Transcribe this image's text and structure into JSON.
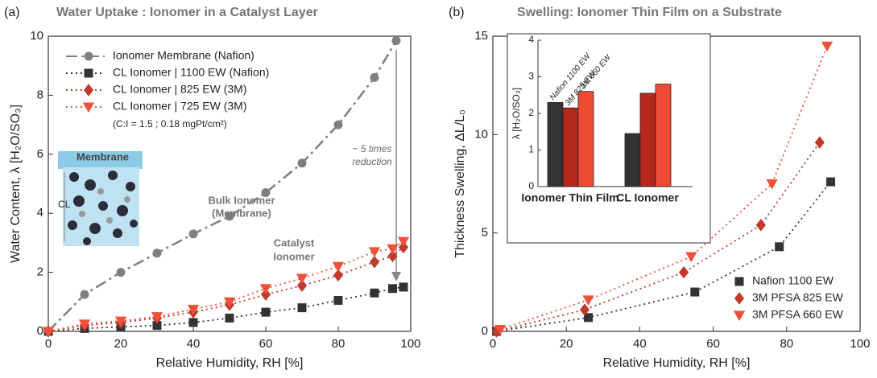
{
  "chart_data": [
    {
      "type": "line",
      "panel": "(a)",
      "title": "Water Uptake : Ionomer in a Catalyst Layer",
      "x_label": "Relative Humidity, RH [%]",
      "y_label": "Water Content,  λ [H₂O/SO₃]",
      "xlim": [
        0,
        100
      ],
      "xticks": [
        0,
        20,
        40,
        60,
        80,
        100
      ],
      "ylim": [
        0,
        10
      ],
      "yticks": [
        0,
        2,
        4,
        6,
        8,
        10
      ],
      "legend": "upper left",
      "series": [
        {
          "name": "Ionomer Membrane (Nafion)",
          "color": "#7f7f7f",
          "marker": "circle",
          "linestyle": "dashdot",
          "x": [
            0,
            10,
            20,
            30,
            40,
            50,
            60,
            70,
            80,
            90,
            96
          ],
          "values": [
            0,
            1.25,
            2.0,
            2.65,
            3.3,
            3.9,
            4.7,
            5.7,
            7.0,
            8.6,
            9.85
          ]
        },
        {
          "name": "CL Ionomer | 1100 EW (Nafion)",
          "color": "#333333",
          "marker": "square",
          "linestyle": "dotted",
          "x": [
            0,
            10,
            20,
            30,
            40,
            50,
            60,
            70,
            80,
            90,
            95,
            98
          ],
          "values": [
            0,
            0.1,
            0.15,
            0.2,
            0.3,
            0.45,
            0.65,
            0.8,
            1.05,
            1.3,
            1.45,
            1.5
          ]
        },
        {
          "name": "CL Ionomer | 825 EW (3M)",
          "color": "#c0392b",
          "marker": "diamond",
          "linestyle": "dotted",
          "x": [
            0,
            10,
            20,
            30,
            40,
            50,
            60,
            70,
            80,
            90,
            95,
            98
          ],
          "values": [
            0,
            0.2,
            0.3,
            0.45,
            0.65,
            0.9,
            1.25,
            1.55,
            1.9,
            2.35,
            2.55,
            2.85
          ]
        },
        {
          "name": "CL Ionomer | 725 EW (3M)",
          "color": "#f0503a",
          "marker": "triangle",
          "linestyle": "dotted",
          "x": [
            0,
            10,
            20,
            30,
            40,
            50,
            60,
            70,
            80,
            90,
            95,
            98
          ],
          "values": [
            0,
            0.25,
            0.35,
            0.5,
            0.75,
            1.0,
            1.45,
            1.8,
            2.2,
            2.7,
            2.8,
            3.05
          ]
        }
      ],
      "annotations": [
        "(C:I = 1.5 ; 0.18 mgPt/cm²)",
        "Bulk Ionomer",
        "(Membrane)",
        "Catalyst",
        "Ionomer",
        "~ 5 times",
        "reduction",
        "Membrane",
        "CL"
      ]
    },
    {
      "type": "line",
      "panel": "(b)",
      "title": "Swelling: Ionomer Thin Film on a Substrate",
      "x_label": "Relative Humidity, RH [%]",
      "y_label": "Thickness Swelling,  ΔL/L₀",
      "xlim": [
        0,
        100
      ],
      "xticks": [
        0,
        20,
        40,
        60,
        80,
        100
      ],
      "ylim": [
        0,
        15
      ],
      "yticks": [
        0,
        5,
        10,
        15
      ],
      "legend": "lower right",
      "series": [
        {
          "name": "Nafion 1100 EW",
          "color": "#333333",
          "marker": "square",
          "linestyle": "dotted",
          "x": [
            1,
            26,
            55,
            78,
            92
          ],
          "values": [
            0,
            0.7,
            2.0,
            4.3,
            7.6
          ]
        },
        {
          "name": "3M PFSA 825 EW",
          "color": "#c0392b",
          "marker": "diamond",
          "linestyle": "dotted",
          "x": [
            1,
            25,
            52,
            73,
            89
          ],
          "values": [
            0,
            1.1,
            3.0,
            5.4,
            9.6
          ]
        },
        {
          "name": "3M PFSA 660 EW",
          "color": "#f0503a",
          "marker": "triangle",
          "linestyle": "dotted",
          "x": [
            2,
            26,
            54,
            76,
            91
          ],
          "values": [
            0.1,
            1.6,
            3.8,
            7.5,
            14.5
          ]
        }
      ]
    },
    {
      "type": "bar",
      "y_label": "λ [H₂O/SO₃]",
      "ylim": [
        0,
        4
      ],
      "yticks": [
        0,
        1,
        2,
        3,
        4
      ],
      "categories": [
        "Ionomer Thin Film",
        "CL Ionomer"
      ],
      "series": [
        {
          "name": "Nafion 1100 EW",
          "color": "#333333",
          "values": [
            2.3,
            1.45
          ]
        },
        {
          "name": "3M 825 EW",
          "color": "#b5281c",
          "values": [
            2.15,
            2.55
          ]
        },
        {
          "name": "3M 660 EW",
          "color": "#ee4b35",
          "values": [
            2.6,
            2.8
          ]
        }
      ]
    }
  ]
}
